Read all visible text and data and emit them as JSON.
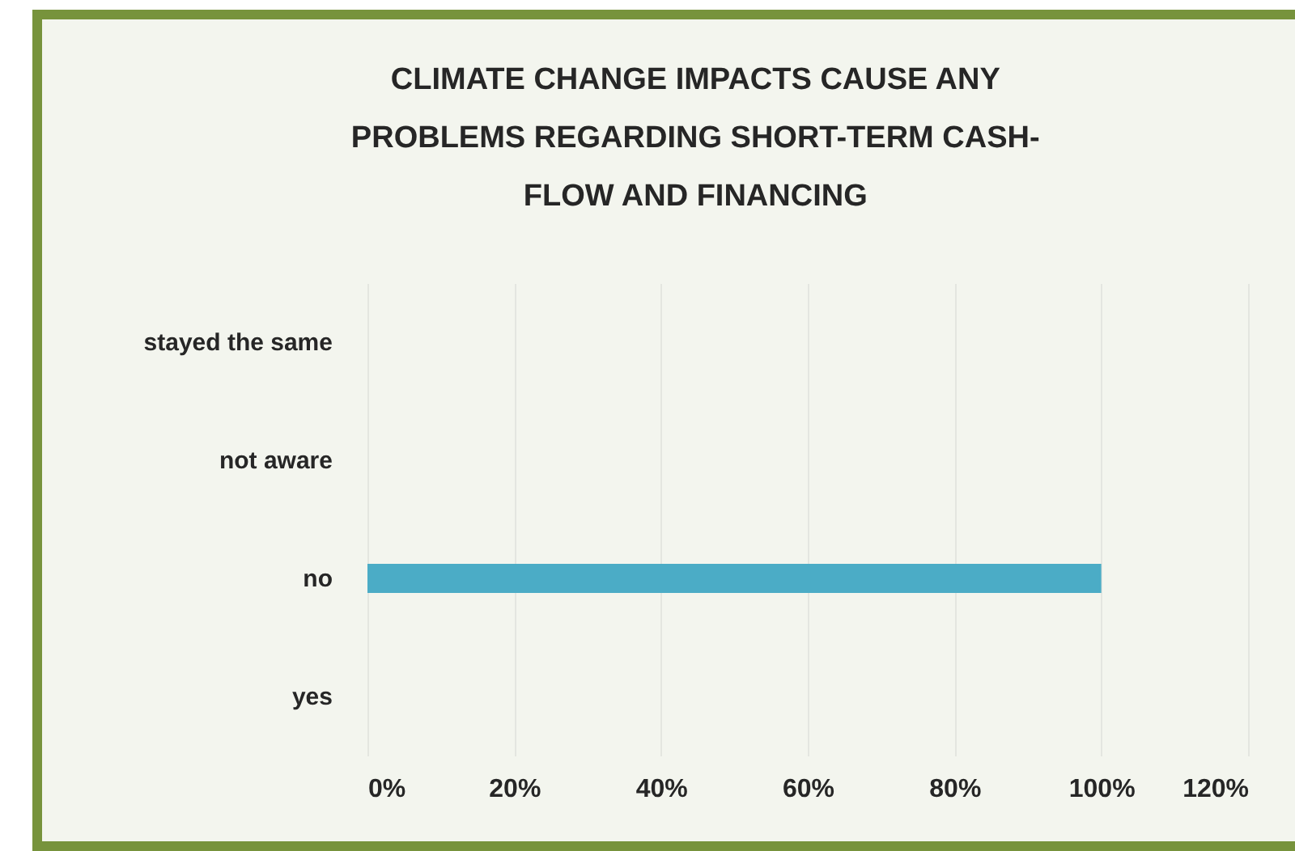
{
  "chart_data": {
    "type": "bar",
    "orientation": "horizontal",
    "title": "CLIMATE CHANGE IMPACTS CAUSE ANY PROBLEMS REGARDING SHORT-TERM CASH-FLOW AND FINANCING",
    "categories": [
      "stayed the same",
      "not aware",
      "no",
      "yes"
    ],
    "values": [
      0,
      0,
      100,
      0
    ],
    "color": "#4bacc6",
    "xlim": [
      0,
      120
    ],
    "xticks": [
      {
        "value": 0,
        "label": "0%"
      },
      {
        "value": 20,
        "label": "20%"
      },
      {
        "value": 40,
        "label": "40%"
      },
      {
        "value": 60,
        "label": "60%"
      },
      {
        "value": 80,
        "label": "80%"
      },
      {
        "value": 100,
        "label": "100%"
      },
      {
        "value": 120,
        "label": "120%"
      }
    ],
    "grid": "x"
  }
}
